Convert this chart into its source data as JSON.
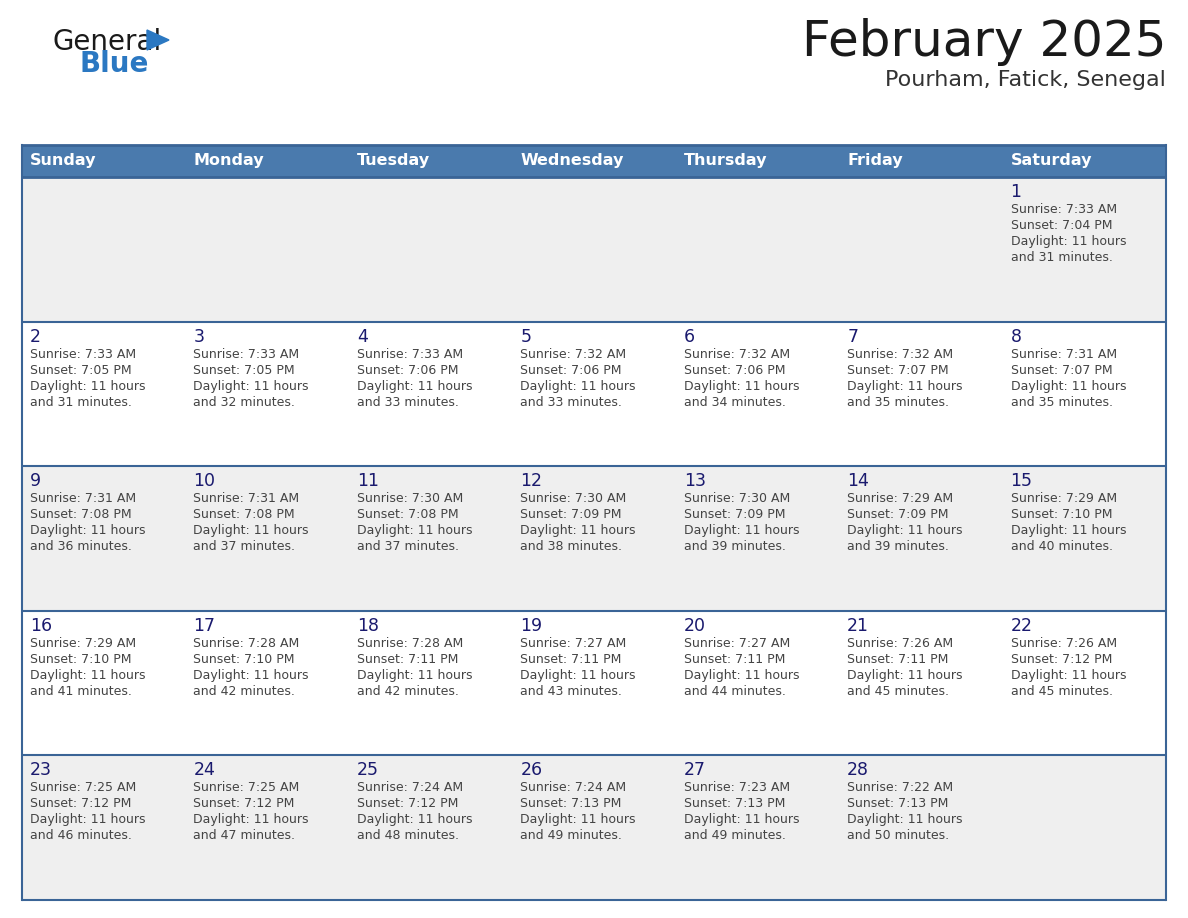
{
  "title": "February 2025",
  "subtitle": "Pourham, Fatick, Senegal",
  "header_bg": "#4a7aad",
  "header_text": "#ffffff",
  "day_names": [
    "Sunday",
    "Monday",
    "Tuesday",
    "Wednesday",
    "Thursday",
    "Friday",
    "Saturday"
  ],
  "row_bg": [
    "#efefef",
    "#ffffff",
    "#efefef",
    "#ffffff",
    "#efefef"
  ],
  "cell_text_color": "#444444",
  "day_num_color": "#1a1a6e",
  "border_color": "#3a6496",
  "days": [
    {
      "date": 1,
      "col": 6,
      "row": 0,
      "sunrise": "7:33 AM",
      "sunset": "7:04 PM",
      "daylight": "11 hours and 31 minutes."
    },
    {
      "date": 2,
      "col": 0,
      "row": 1,
      "sunrise": "7:33 AM",
      "sunset": "7:05 PM",
      "daylight": "11 hours and 31 minutes."
    },
    {
      "date": 3,
      "col": 1,
      "row": 1,
      "sunrise": "7:33 AM",
      "sunset": "7:05 PM",
      "daylight": "11 hours and 32 minutes."
    },
    {
      "date": 4,
      "col": 2,
      "row": 1,
      "sunrise": "7:33 AM",
      "sunset": "7:06 PM",
      "daylight": "11 hours and 33 minutes."
    },
    {
      "date": 5,
      "col": 3,
      "row": 1,
      "sunrise": "7:32 AM",
      "sunset": "7:06 PM",
      "daylight": "11 hours and 33 minutes."
    },
    {
      "date": 6,
      "col": 4,
      "row": 1,
      "sunrise": "7:32 AM",
      "sunset": "7:06 PM",
      "daylight": "11 hours and 34 minutes."
    },
    {
      "date": 7,
      "col": 5,
      "row": 1,
      "sunrise": "7:32 AM",
      "sunset": "7:07 PM",
      "daylight": "11 hours and 35 minutes."
    },
    {
      "date": 8,
      "col": 6,
      "row": 1,
      "sunrise": "7:31 AM",
      "sunset": "7:07 PM",
      "daylight": "11 hours and 35 minutes."
    },
    {
      "date": 9,
      "col": 0,
      "row": 2,
      "sunrise": "7:31 AM",
      "sunset": "7:08 PM",
      "daylight": "11 hours and 36 minutes."
    },
    {
      "date": 10,
      "col": 1,
      "row": 2,
      "sunrise": "7:31 AM",
      "sunset": "7:08 PM",
      "daylight": "11 hours and 37 minutes."
    },
    {
      "date": 11,
      "col": 2,
      "row": 2,
      "sunrise": "7:30 AM",
      "sunset": "7:08 PM",
      "daylight": "11 hours and 37 minutes."
    },
    {
      "date": 12,
      "col": 3,
      "row": 2,
      "sunrise": "7:30 AM",
      "sunset": "7:09 PM",
      "daylight": "11 hours and 38 minutes."
    },
    {
      "date": 13,
      "col": 4,
      "row": 2,
      "sunrise": "7:30 AM",
      "sunset": "7:09 PM",
      "daylight": "11 hours and 39 minutes."
    },
    {
      "date": 14,
      "col": 5,
      "row": 2,
      "sunrise": "7:29 AM",
      "sunset": "7:09 PM",
      "daylight": "11 hours and 39 minutes."
    },
    {
      "date": 15,
      "col": 6,
      "row": 2,
      "sunrise": "7:29 AM",
      "sunset": "7:10 PM",
      "daylight": "11 hours and 40 minutes."
    },
    {
      "date": 16,
      "col": 0,
      "row": 3,
      "sunrise": "7:29 AM",
      "sunset": "7:10 PM",
      "daylight": "11 hours and 41 minutes."
    },
    {
      "date": 17,
      "col": 1,
      "row": 3,
      "sunrise": "7:28 AM",
      "sunset": "7:10 PM",
      "daylight": "11 hours and 42 minutes."
    },
    {
      "date": 18,
      "col": 2,
      "row": 3,
      "sunrise": "7:28 AM",
      "sunset": "7:11 PM",
      "daylight": "11 hours and 42 minutes."
    },
    {
      "date": 19,
      "col": 3,
      "row": 3,
      "sunrise": "7:27 AM",
      "sunset": "7:11 PM",
      "daylight": "11 hours and 43 minutes."
    },
    {
      "date": 20,
      "col": 4,
      "row": 3,
      "sunrise": "7:27 AM",
      "sunset": "7:11 PM",
      "daylight": "11 hours and 44 minutes."
    },
    {
      "date": 21,
      "col": 5,
      "row": 3,
      "sunrise": "7:26 AM",
      "sunset": "7:11 PM",
      "daylight": "11 hours and 45 minutes."
    },
    {
      "date": 22,
      "col": 6,
      "row": 3,
      "sunrise": "7:26 AM",
      "sunset": "7:12 PM",
      "daylight": "11 hours and 45 minutes."
    },
    {
      "date": 23,
      "col": 0,
      "row": 4,
      "sunrise": "7:25 AM",
      "sunset": "7:12 PM",
      "daylight": "11 hours and 46 minutes."
    },
    {
      "date": 24,
      "col": 1,
      "row": 4,
      "sunrise": "7:25 AM",
      "sunset": "7:12 PM",
      "daylight": "11 hours and 47 minutes."
    },
    {
      "date": 25,
      "col": 2,
      "row": 4,
      "sunrise": "7:24 AM",
      "sunset": "7:12 PM",
      "daylight": "11 hours and 48 minutes."
    },
    {
      "date": 26,
      "col": 3,
      "row": 4,
      "sunrise": "7:24 AM",
      "sunset": "7:13 PM",
      "daylight": "11 hours and 49 minutes."
    },
    {
      "date": 27,
      "col": 4,
      "row": 4,
      "sunrise": "7:23 AM",
      "sunset": "7:13 PM",
      "daylight": "11 hours and 49 minutes."
    },
    {
      "date": 28,
      "col": 5,
      "row": 4,
      "sunrise": "7:22 AM",
      "sunset": "7:13 PM",
      "daylight": "11 hours and 50 minutes."
    }
  ]
}
